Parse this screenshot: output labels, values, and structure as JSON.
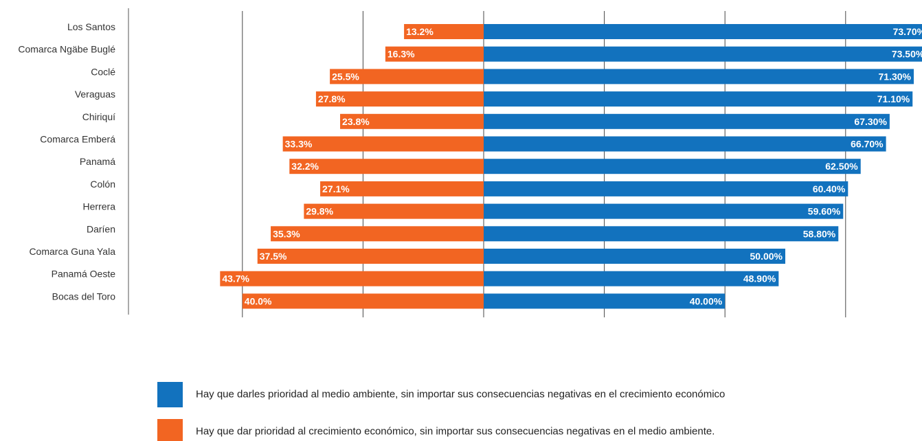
{
  "chart_data": {
    "type": "bar",
    "orientation": "horizontal-diverging",
    "categories": [
      "Los Santos",
      "Comarca Ngäbe Buglé",
      "Coclé",
      "Veraguas",
      "Chiriquí",
      "Comarca Emberá",
      "Panamá",
      "Colón",
      "Herrera",
      "Daríen",
      "Comarca Guna Yala",
      "Panamá Oeste",
      "Bocas del Toro"
    ],
    "series": [
      {
        "name": "Hay que darles prioridad al medio ambiente, sin importar sus consecuencias negativas en el crecimiento económico",
        "color": "#1272BE",
        "direction": "right",
        "values": [
          73.7,
          73.5,
          71.3,
          71.1,
          67.3,
          66.7,
          62.5,
          60.4,
          59.6,
          58.8,
          50.0,
          48.9,
          40.0
        ],
        "labels": [
          "73.70%",
          "73.50%",
          "71.30%",
          "71.10%",
          "67.30%",
          "66.70%",
          "62.50%",
          "60.40%",
          "59.60%",
          "58.80%",
          "50.00%",
          "48.90%",
          "40.00%"
        ]
      },
      {
        "name": "Hay que dar prioridad al crecimiento económico, sin importar sus consecuencias negativas en el medio ambiente.",
        "color": "#F26522",
        "direction": "left",
        "values": [
          13.2,
          16.3,
          25.5,
          27.8,
          23.8,
          33.3,
          32.2,
          27.1,
          29.8,
          35.3,
          37.5,
          43.7,
          40.0
        ],
        "labels": [
          "13.2%",
          "16.3%",
          "25.5%",
          "27.8%",
          "23.8%",
          "33.3%",
          "32.2%",
          "27.1%",
          "29.8%",
          "35.3%",
          "37.5%",
          "43.7%",
          "40.0%"
        ]
      }
    ],
    "xlim": [
      -50,
      80
    ],
    "gridlines": [
      -40,
      -20,
      0,
      20,
      40,
      60
    ],
    "grid": true,
    "legend_position": "bottom"
  }
}
